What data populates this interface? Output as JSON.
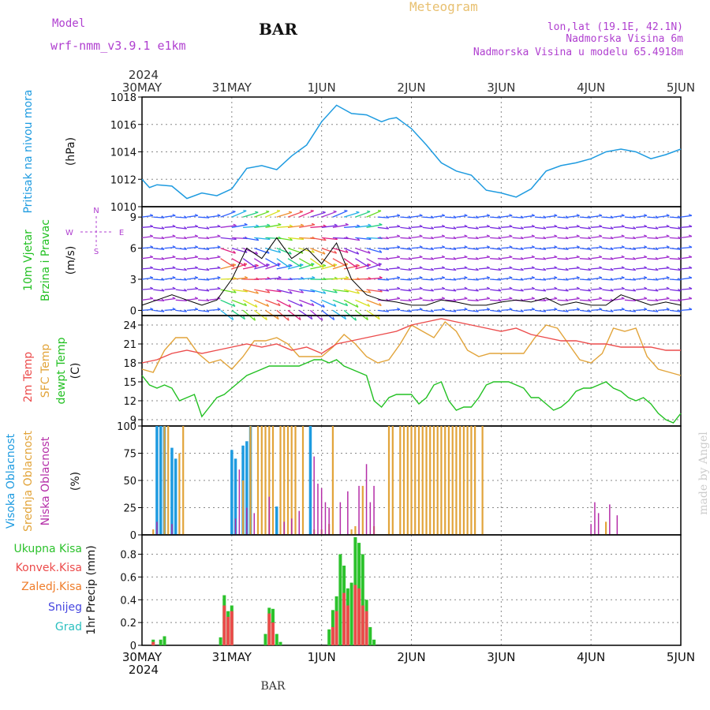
{
  "header": {
    "model_label": "Model",
    "model_name": "wrf-nmm_v3.9.1 e1km",
    "station": "BAR",
    "title": "Meteogram",
    "coords": "lon,lat (19.1E, 42.1N)",
    "elevation": "Nadmorska Visina 6m",
    "model_elevation": "Nadmorska Visina u modelu 65.4918m",
    "year_top": "2024",
    "year_bottom": "2024",
    "footer": "BAR",
    "watermark": "made by Angel"
  },
  "colors": {
    "pressure": "#1e9be0",
    "temp2m": "#ec4b4b",
    "sfc": "#e2a43a",
    "dewpt": "#22c022",
    "high_cloud": "#1e9be0",
    "mid_cloud": "#e2a43a",
    "low_cloud": "#b52ea8",
    "total_precip": "#2cc22c",
    "convective": "#ec4b4b",
    "freezing": "#ef7d2a",
    "snow": "#4646e0",
    "grad": "#2cc0c0",
    "purple_text": "#b040d0",
    "gold_text": "#e8c070",
    "wind_gust": "#000000"
  },
  "chart_data": [
    {
      "type": "line",
      "panel": "pressure",
      "ylabel_main": "Pritisak na nivou mora",
      "ylabel_unit": "(hPa)",
      "x_unit": "hours from 30MAY 00UTC",
      "x_ticks": [
        "30MAY",
        "31MAY",
        "1JUN",
        "2JUN",
        "3JUN",
        "4JUN",
        "5JUN"
      ],
      "ylim": [
        1010,
        1018
      ],
      "yticks": [
        1010,
        1012,
        1014,
        1016,
        1018
      ],
      "grid": true,
      "series": [
        {
          "x": [
            0,
            2,
            4,
            8,
            12,
            16,
            20,
            24,
            28,
            32,
            36,
            40,
            44,
            48,
            52,
            56,
            60,
            64,
            66,
            68,
            72,
            76,
            80,
            84,
            88,
            92,
            96,
            100,
            104,
            108,
            112,
            116,
            120,
            124,
            128,
            132,
            136,
            140,
            144
          ],
          "y": [
            1012.0,
            1011.4,
            1011.6,
            1011.5,
            1010.6,
            1011.0,
            1010.8,
            1011.3,
            1012.8,
            1013.0,
            1012.7,
            1013.7,
            1014.5,
            1016.2,
            1017.4,
            1016.8,
            1016.7,
            1016.2,
            1016.4,
            1016.5,
            1015.7,
            1014.5,
            1013.2,
            1012.6,
            1012.3,
            1011.2,
            1011.0,
            1010.7,
            1011.3,
            1012.6,
            1013.0,
            1013.2,
            1013.5,
            1014.0,
            1014.2,
            1014.0,
            1013.5,
            1013.8,
            1014.2
          ]
        }
      ]
    },
    {
      "type": "line",
      "panel": "wind",
      "ylabel_main": "10m Vjetar",
      "ylabel_sub": "Brzina i Pravac",
      "ylabel_unit": "(m/s)",
      "compass": [
        "N",
        "S",
        "W",
        "E"
      ],
      "ylim": [
        -0.5,
        10
      ],
      "yticks": [
        0,
        3,
        6,
        9
      ],
      "grid": true,
      "series": [
        {
          "name": "wind speed",
          "x": [
            0,
            4,
            8,
            12,
            16,
            20,
            24,
            28,
            32,
            36,
            40,
            44,
            48,
            52,
            56,
            60,
            64,
            68,
            72,
            76,
            80,
            84,
            88,
            92,
            96,
            100,
            104,
            108,
            112,
            116,
            120,
            124,
            128,
            132,
            136,
            140,
            144
          ],
          "y": [
            0.5,
            1.0,
            1.5,
            1.0,
            0.5,
            1.0,
            3.0,
            6.0,
            5.0,
            7.0,
            5.0,
            6.0,
            4.5,
            6.5,
            3.0,
            1.5,
            1.0,
            0.8,
            0.5,
            0.5,
            1.0,
            0.8,
            0.5,
            0.5,
            0.8,
            1.0,
            0.8,
            1.2,
            0.5,
            0.8,
            0.5,
            0.5,
            1.5,
            1.0,
            0.5,
            0.8,
            0.5
          ]
        }
      ]
    },
    {
      "type": "line",
      "panel": "temperature",
      "ylabel_main": "2m Temp",
      "ylabel_sub": "SFC Temp",
      "ylabel_sub2": "dewpt Temp",
      "ylabel_unit": "(C)",
      "ylim": [
        8,
        25.5
      ],
      "yticks": [
        9,
        12,
        15,
        18,
        21,
        24
      ],
      "grid": true,
      "series": [
        {
          "name": "2m Temp",
          "x": [
            0,
            4,
            8,
            12,
            16,
            20,
            24,
            28,
            32,
            36,
            40,
            44,
            48,
            52,
            56,
            60,
            64,
            68,
            72,
            76,
            80,
            84,
            88,
            92,
            96,
            100,
            104,
            108,
            112,
            116,
            120,
            124,
            128,
            132,
            136,
            140,
            144
          ],
          "y": [
            18.0,
            18.5,
            19.5,
            20.0,
            19.5,
            20.0,
            20.5,
            21.0,
            20.5,
            21.0,
            20.0,
            20.5,
            19.5,
            21.0,
            21.5,
            22.0,
            22.5,
            23.0,
            24.0,
            24.5,
            25.0,
            24.5,
            24.0,
            23.5,
            23.0,
            23.5,
            22.5,
            22.0,
            21.5,
            21.5,
            21.0,
            21.0,
            20.5,
            20.5,
            20.5,
            20.0,
            20.0
          ]
        },
        {
          "name": "SFC Temp",
          "x": [
            0,
            3,
            6,
            9,
            12,
            15,
            18,
            21,
            24,
            27,
            30,
            33,
            36,
            39,
            42,
            45,
            48,
            51,
            54,
            57,
            60,
            63,
            66,
            69,
            72,
            75,
            78,
            81,
            84,
            87,
            90,
            93,
            96,
            99,
            102,
            105,
            108,
            111,
            114,
            117,
            120,
            123,
            126,
            129,
            132,
            135,
            138,
            141,
            144
          ],
          "y": [
            17.0,
            16.5,
            20.0,
            22.0,
            22.0,
            19.5,
            18.0,
            18.5,
            17.0,
            19.0,
            21.5,
            21.5,
            22.0,
            21.0,
            19.0,
            19.0,
            19.0,
            20.5,
            22.5,
            21.0,
            19.0,
            18.0,
            18.5,
            21.0,
            24.0,
            23.0,
            22.0,
            24.5,
            23.0,
            20.0,
            19.0,
            19.5,
            19.5,
            19.5,
            19.5,
            22.0,
            24.0,
            23.5,
            21.0,
            18.5,
            18.0,
            19.5,
            23.5,
            23.0,
            23.5,
            19.0,
            17.0,
            16.5,
            16.0
          ]
        },
        {
          "name": "dewpt Temp",
          "x": [
            0,
            2,
            4,
            6,
            8,
            10,
            12,
            14,
            16,
            18,
            20,
            22,
            24,
            26,
            28,
            30,
            32,
            34,
            36,
            38,
            40,
            42,
            44,
            46,
            48,
            50,
            52,
            54,
            56,
            58,
            60,
            62,
            64,
            66,
            68,
            70,
            72,
            74,
            76,
            78,
            80,
            82,
            84,
            86,
            88,
            90,
            92,
            94,
            96,
            98,
            100,
            102,
            104,
            106,
            108,
            110,
            112,
            114,
            116,
            118,
            120,
            122,
            124,
            126,
            128,
            130,
            132,
            134,
            136,
            138,
            140,
            142,
            144
          ],
          "y": [
            16.0,
            14.5,
            14.0,
            14.5,
            14.0,
            12.0,
            12.5,
            13.0,
            9.5,
            11.0,
            12.5,
            13.0,
            14.0,
            15.0,
            16.0,
            16.5,
            17.0,
            17.5,
            17.5,
            17.5,
            17.5,
            17.5,
            18.0,
            18.5,
            18.5,
            18.0,
            18.5,
            17.5,
            17.0,
            16.5,
            16.0,
            12.0,
            11.0,
            12.5,
            13.0,
            13.0,
            13.0,
            11.5,
            12.5,
            14.5,
            15.0,
            12.0,
            10.5,
            11.0,
            11.0,
            12.5,
            14.5,
            15.0,
            15.0,
            15.0,
            14.5,
            14.0,
            12.5,
            12.5,
            11.5,
            10.5,
            11.0,
            12.0,
            13.5,
            14.0,
            14.0,
            14.5,
            15.0,
            14.0,
            13.5,
            12.5,
            12.0,
            12.5,
            11.5,
            10.0,
            9.0,
            8.5,
            10.0
          ]
        }
      ]
    },
    {
      "type": "bar",
      "panel": "cloud",
      "ylabel_main": "Visoka Oblacnost",
      "ylabel_sub": "Srednja Oblacnost",
      "ylabel_sub2": "Niska Oblacnost",
      "ylabel_unit": "(%)",
      "ylim": [
        0,
        100
      ],
      "yticks": [
        0,
        25,
        50,
        75,
        100
      ],
      "grid": true,
      "series": [
        {
          "name": "Visoka Oblacnost",
          "x": [
            4,
            5,
            6,
            8,
            9,
            24,
            25,
            27,
            28,
            29,
            36,
            45
          ],
          "values": [
            100,
            100,
            100,
            80,
            70,
            78,
            70,
            82,
            86,
            100,
            26,
            100
          ]
        },
        {
          "name": "Srednja Oblacnost",
          "x": [
            3,
            6,
            7,
            10,
            11,
            27,
            29,
            31,
            32,
            33,
            34,
            35,
            37,
            38,
            39,
            40,
            41,
            43,
            46,
            48,
            50,
            51,
            56,
            57,
            59,
            62,
            66,
            67,
            69,
            70,
            71,
            72,
            73,
            74,
            75,
            76,
            77,
            78,
            79,
            80,
            81,
            82,
            83,
            84,
            85,
            86,
            87,
            88,
            89,
            91,
            124
          ],
          "values": [
            5,
            100,
            100,
            75,
            100,
            50,
            100,
            100,
            100,
            100,
            100,
            100,
            100,
            100,
            100,
            100,
            100,
            100,
            5,
            5,
            10,
            100,
            5,
            8,
            45,
            8,
            100,
            100,
            100,
            100,
            100,
            100,
            100,
            100,
            100,
            100,
            100,
            100,
            100,
            100,
            100,
            100,
            100,
            100,
            100,
            100,
            100,
            100,
            100,
            100,
            12
          ]
        },
        {
          "name": "Niska Oblacnost",
          "x": [
            4,
            8,
            25,
            26,
            28,
            30,
            34,
            38,
            40,
            42,
            46,
            47,
            48,
            49,
            50,
            53,
            55,
            58,
            60,
            61,
            62,
            120,
            121,
            122,
            125,
            127
          ],
          "values": [
            12,
            10,
            15,
            60,
            25,
            20,
            35,
            12,
            15,
            22,
            72,
            47,
            43,
            30,
            25,
            30,
            40,
            45,
            65,
            30,
            45,
            10,
            30,
            20,
            28,
            18
          ]
        }
      ]
    },
    {
      "type": "bar",
      "panel": "precip",
      "ylabel_main": "Ukupna Kisa",
      "ylabel_sub": "Konvek.Kisa",
      "ylabel_sub2": "Zaledj.Kisa",
      "ylabel_sub3": "Snijeg",
      "ylabel_sub4": "Grad",
      "ylabel_unit": "1hr Precip (mm)",
      "ylim": [
        0,
        0.97
      ],
      "yticks": [
        0,
        0.2,
        0.4,
        0.6,
        0.8
      ],
      "grid": true,
      "series": [
        {
          "name": "Ukupna Kisa",
          "x": [
            3,
            5,
            6,
            21,
            22,
            23,
            24,
            33,
            34,
            35,
            36,
            37,
            50,
            51,
            52,
            53,
            54,
            55,
            56,
            57,
            58,
            59,
            60,
            61,
            62
          ],
          "values": [
            0.05,
            0.05,
            0.08,
            0.07,
            0.44,
            0.3,
            0.35,
            0.1,
            0.33,
            0.32,
            0.1,
            0.03,
            0.14,
            0.31,
            0.43,
            0.8,
            0.7,
            0.5,
            0.55,
            0.95,
            0.9,
            0.8,
            0.4,
            0.16,
            0.05
          ]
        },
        {
          "name": "Konvek.Kisa",
          "x": [
            3,
            22,
            23,
            24,
            34,
            35,
            51,
            52,
            54,
            55,
            57,
            58,
            59,
            60
          ],
          "values": [
            0.03,
            0.35,
            0.25,
            0.3,
            0.28,
            0.2,
            0.16,
            0.3,
            0.46,
            0.35,
            0.53,
            0.5,
            0.35,
            0.3
          ]
        }
      ]
    }
  ]
}
